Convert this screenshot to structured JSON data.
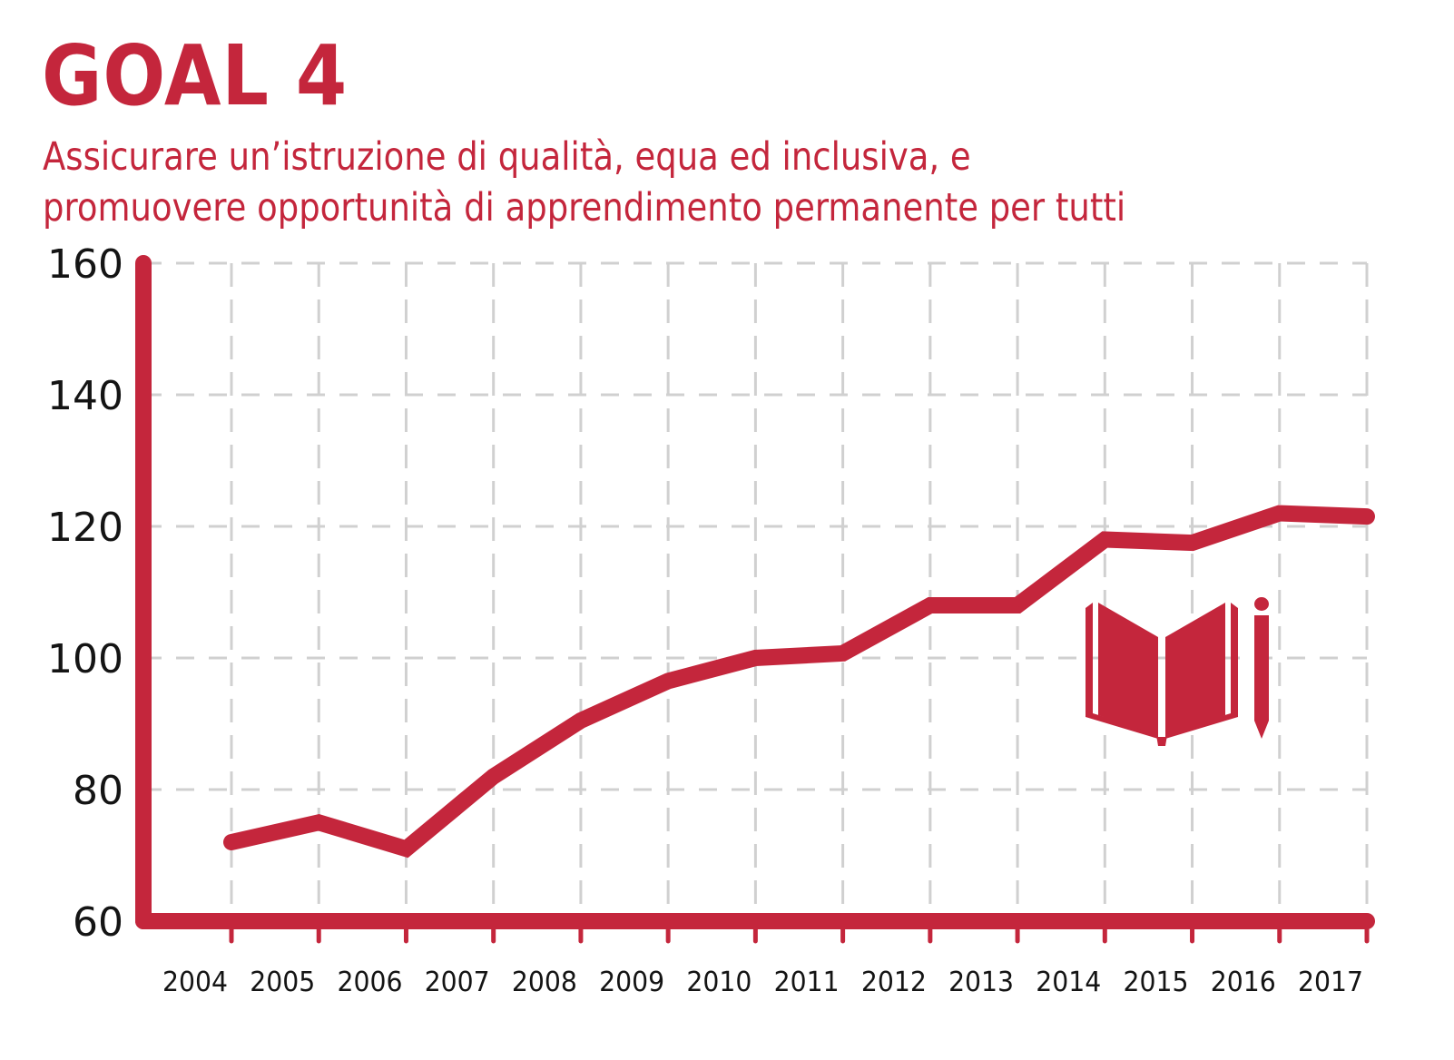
{
  "header": {
    "title": "GOAL 4",
    "subtitle_line1": "Assicurare un’istruzione di qualità, equa ed inclusiva, e",
    "subtitle_line2": "promuovere opportunità di apprendimento permanente per tutti"
  },
  "colors": {
    "accent": "#c4263c",
    "grid": "#d0d0d0",
    "text": "#141414"
  },
  "icon": "book-and-pencil-icon",
  "chart_data": {
    "type": "line",
    "title": "GOAL 4",
    "subtitle": "Assicurare un’istruzione di qualità, equa ed inclusiva, e promuovere opportunità di apprendimento permanente per tutti",
    "xlabel": "",
    "ylabel": "",
    "x": [
      "2004",
      "2005",
      "2006",
      "2007",
      "2008",
      "2009",
      "2010",
      "2011",
      "2012",
      "2013",
      "2014",
      "2015",
      "2016",
      "2017"
    ],
    "series": [
      {
        "name": "Goal 4",
        "values": [
          72,
          75,
          71,
          82,
          90.5,
          96.5,
          100,
          100.7,
          108,
          108,
          118,
          117.5,
          122,
          121.5
        ]
      }
    ],
    "ylim": [
      60,
      160
    ],
    "yticks": [
      "60",
      "80",
      "100",
      "120",
      "140",
      "160"
    ],
    "grid": true,
    "legend": "none"
  }
}
